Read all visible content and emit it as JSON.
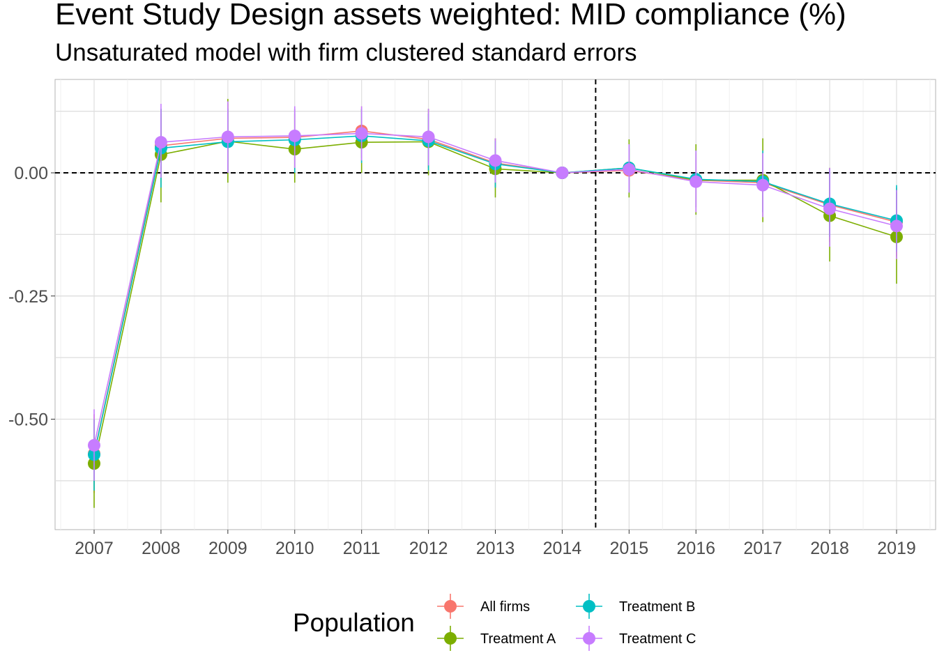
{
  "chart_data": {
    "type": "line",
    "title": "Event Study Design assets weighted: MID compliance (%)",
    "subtitle": "Unsaturated model with firm clustered standard errors",
    "xlabel": "",
    "ylabel": "",
    "categories": [
      "2007",
      "2008",
      "2009",
      "2010",
      "2011",
      "2012",
      "2013",
      "2014",
      "2015",
      "2016",
      "2017",
      "2018",
      "2019"
    ],
    "ylim": [
      -0.72,
      0.19
    ],
    "yticks": [
      0.0,
      -0.25,
      -0.5
    ],
    "ytick_labels": [
      "0.00",
      "-0.25",
      "-0.50"
    ],
    "grid": true,
    "reference_lines": {
      "hline_y": 0,
      "vline_x_between": [
        "2014",
        "2015"
      ]
    },
    "legend": {
      "title": "Population",
      "placement": "bottom"
    },
    "series": [
      {
        "name": "All firms",
        "color": "#F8766D",
        "values": [
          -0.57,
          0.055,
          0.07,
          0.072,
          0.085,
          0.068,
          0.02,
          0.0,
          0.005,
          -0.015,
          -0.02,
          -0.065,
          -0.1
        ],
        "lower": [
          -0.65,
          -0.01,
          0.0,
          0.0,
          0.03,
          0.01,
          -0.03,
          0.0,
          -0.04,
          -0.07,
          -0.08,
          -0.14,
          -0.17
        ],
        "upper": [
          -0.49,
          0.12,
          0.14,
          0.13,
          0.135,
          0.12,
          0.07,
          0.0,
          0.05,
          0.04,
          0.04,
          0.01,
          -0.03
        ]
      },
      {
        "name": "Treatment A",
        "color": "#7CAE00",
        "values": [
          -0.59,
          0.037,
          0.064,
          0.048,
          0.062,
          0.063,
          0.008,
          0.0,
          0.01,
          -0.015,
          -0.015,
          -0.087,
          -0.13
        ],
        "lower": [
          -0.68,
          -0.06,
          -0.02,
          -0.02,
          0.0,
          -0.005,
          -0.05,
          0.0,
          -0.05,
          -0.085,
          -0.1,
          -0.18,
          -0.225
        ],
        "upper": [
          -0.5,
          0.13,
          0.15,
          0.12,
          0.13,
          0.13,
          0.07,
          0.0,
          0.068,
          0.058,
          0.07,
          0.01,
          -0.04
        ]
      },
      {
        "name": "Treatment B",
        "color": "#00BFC4",
        "values": [
          -0.572,
          0.05,
          0.063,
          0.067,
          0.075,
          0.065,
          0.018,
          0.0,
          0.01,
          -0.013,
          -0.018,
          -0.063,
          -0.097
        ],
        "lower": [
          -0.645,
          -0.03,
          0.0,
          0.0,
          0.02,
          0.005,
          -0.03,
          0.0,
          -0.04,
          -0.07,
          -0.08,
          -0.13,
          -0.16
        ],
        "upper": [
          -0.5,
          0.13,
          0.13,
          0.13,
          0.13,
          0.12,
          0.065,
          0.0,
          0.058,
          0.045,
          0.045,
          0.008,
          -0.025
        ]
      },
      {
        "name": "Treatment C",
        "color": "#C77CFF",
        "values": [
          -0.553,
          0.062,
          0.073,
          0.075,
          0.08,
          0.073,
          0.025,
          0.0,
          0.007,
          -0.018,
          -0.025,
          -0.073,
          -0.108
        ],
        "lower": [
          -0.625,
          -0.01,
          0.0,
          0.01,
          0.025,
          0.015,
          -0.02,
          0.0,
          -0.04,
          -0.08,
          -0.09,
          -0.15,
          -0.175
        ],
        "upper": [
          -0.48,
          0.14,
          0.145,
          0.135,
          0.135,
          0.13,
          0.07,
          0.0,
          0.058,
          0.045,
          0.04,
          0.01,
          -0.035
        ]
      }
    ]
  }
}
